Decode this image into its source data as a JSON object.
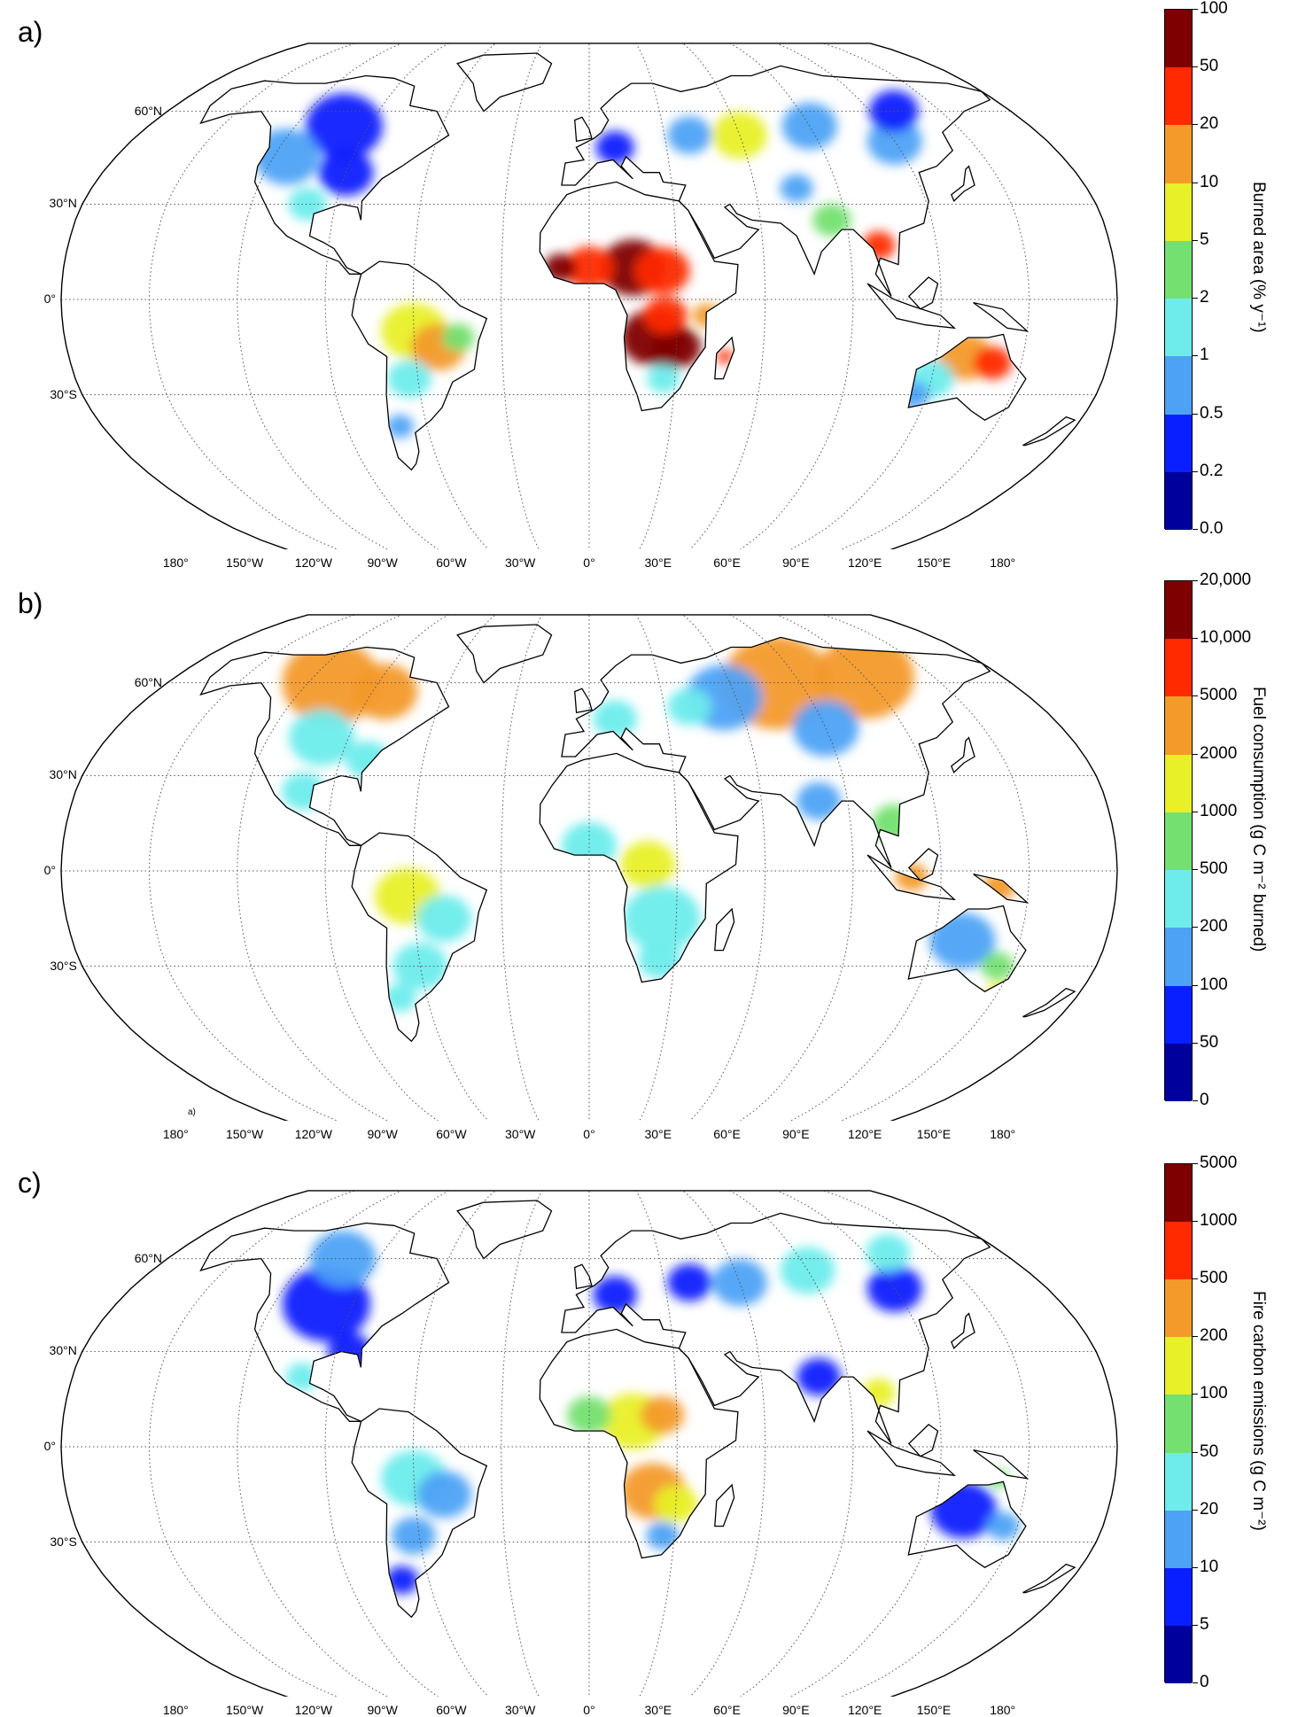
{
  "panels": [
    {
      "letter": "a)",
      "colorbar_title": "Burned area (% y⁻¹)",
      "ticks": [
        "100",
        "50",
        "20",
        "10",
        "5",
        "2",
        "1",
        "0.5",
        "0.2",
        "0.0"
      ],
      "colors": [
        "#7f0000",
        "#ff2a00",
        "#f39a2a",
        "#e8f028",
        "#74e070",
        "#6eecec",
        "#4ea2f5",
        "#0a1fff",
        "#00009c"
      ],
      "lat_labels": [
        "60°N",
        "30°N",
        "0°",
        "30°S"
      ],
      "lon_labels": [
        "180°",
        "150°W",
        "120°W",
        "90°W",
        "60°W",
        "30°W",
        "0°",
        "30°E",
        "60°E",
        "90°E",
        "120°E",
        "150°E",
        "180°"
      ]
    },
    {
      "letter": "b)",
      "colorbar_title": "Fuel consumption (g C m⁻² burned)",
      "ticks": [
        "20,000",
        "10,000",
        "5000",
        "2000",
        "1000",
        "500",
        "200",
        "100",
        "50",
        "0"
      ],
      "colors": [
        "#7f0000",
        "#ff2a00",
        "#f39a2a",
        "#e8f028",
        "#74e070",
        "#6eecec",
        "#4ea2f5",
        "#0a1fff",
        "#00009c"
      ],
      "lat_labels": [
        "60°N",
        "30°N",
        "0°",
        "30°S"
      ],
      "lon_labels": [
        "180°",
        "150°W",
        "120°W",
        "90°W",
        "60°W",
        "30°W",
        "0°",
        "30°E",
        "60°E",
        "90°E",
        "120°E",
        "150°E",
        "180°"
      ],
      "note": "a)"
    },
    {
      "letter": "c)",
      "colorbar_title": "Fire carbon emissions (g C m⁻²)",
      "ticks": [
        "5000",
        "1000",
        "500",
        "200",
        "100",
        "50",
        "20",
        "10",
        "5",
        "0"
      ],
      "colors": [
        "#7f0000",
        "#ff2a00",
        "#f39a2a",
        "#e8f028",
        "#74e070",
        "#6eecec",
        "#4ea2f5",
        "#0a1fff",
        "#00009c"
      ],
      "lat_labels": [
        "60°N",
        "30°N",
        "0°",
        "30°S"
      ],
      "lon_labels": [
        "180°",
        "150°W",
        "120°W",
        "90°W",
        "60°W",
        "30°W",
        "0°",
        "30°E",
        "60°E",
        "90°E",
        "120°E",
        "150°E",
        "180°"
      ]
    }
  ],
  "map_colors": {
    "ocean": "#ffffff",
    "coast": "#000000",
    "grid": "#555555"
  }
}
